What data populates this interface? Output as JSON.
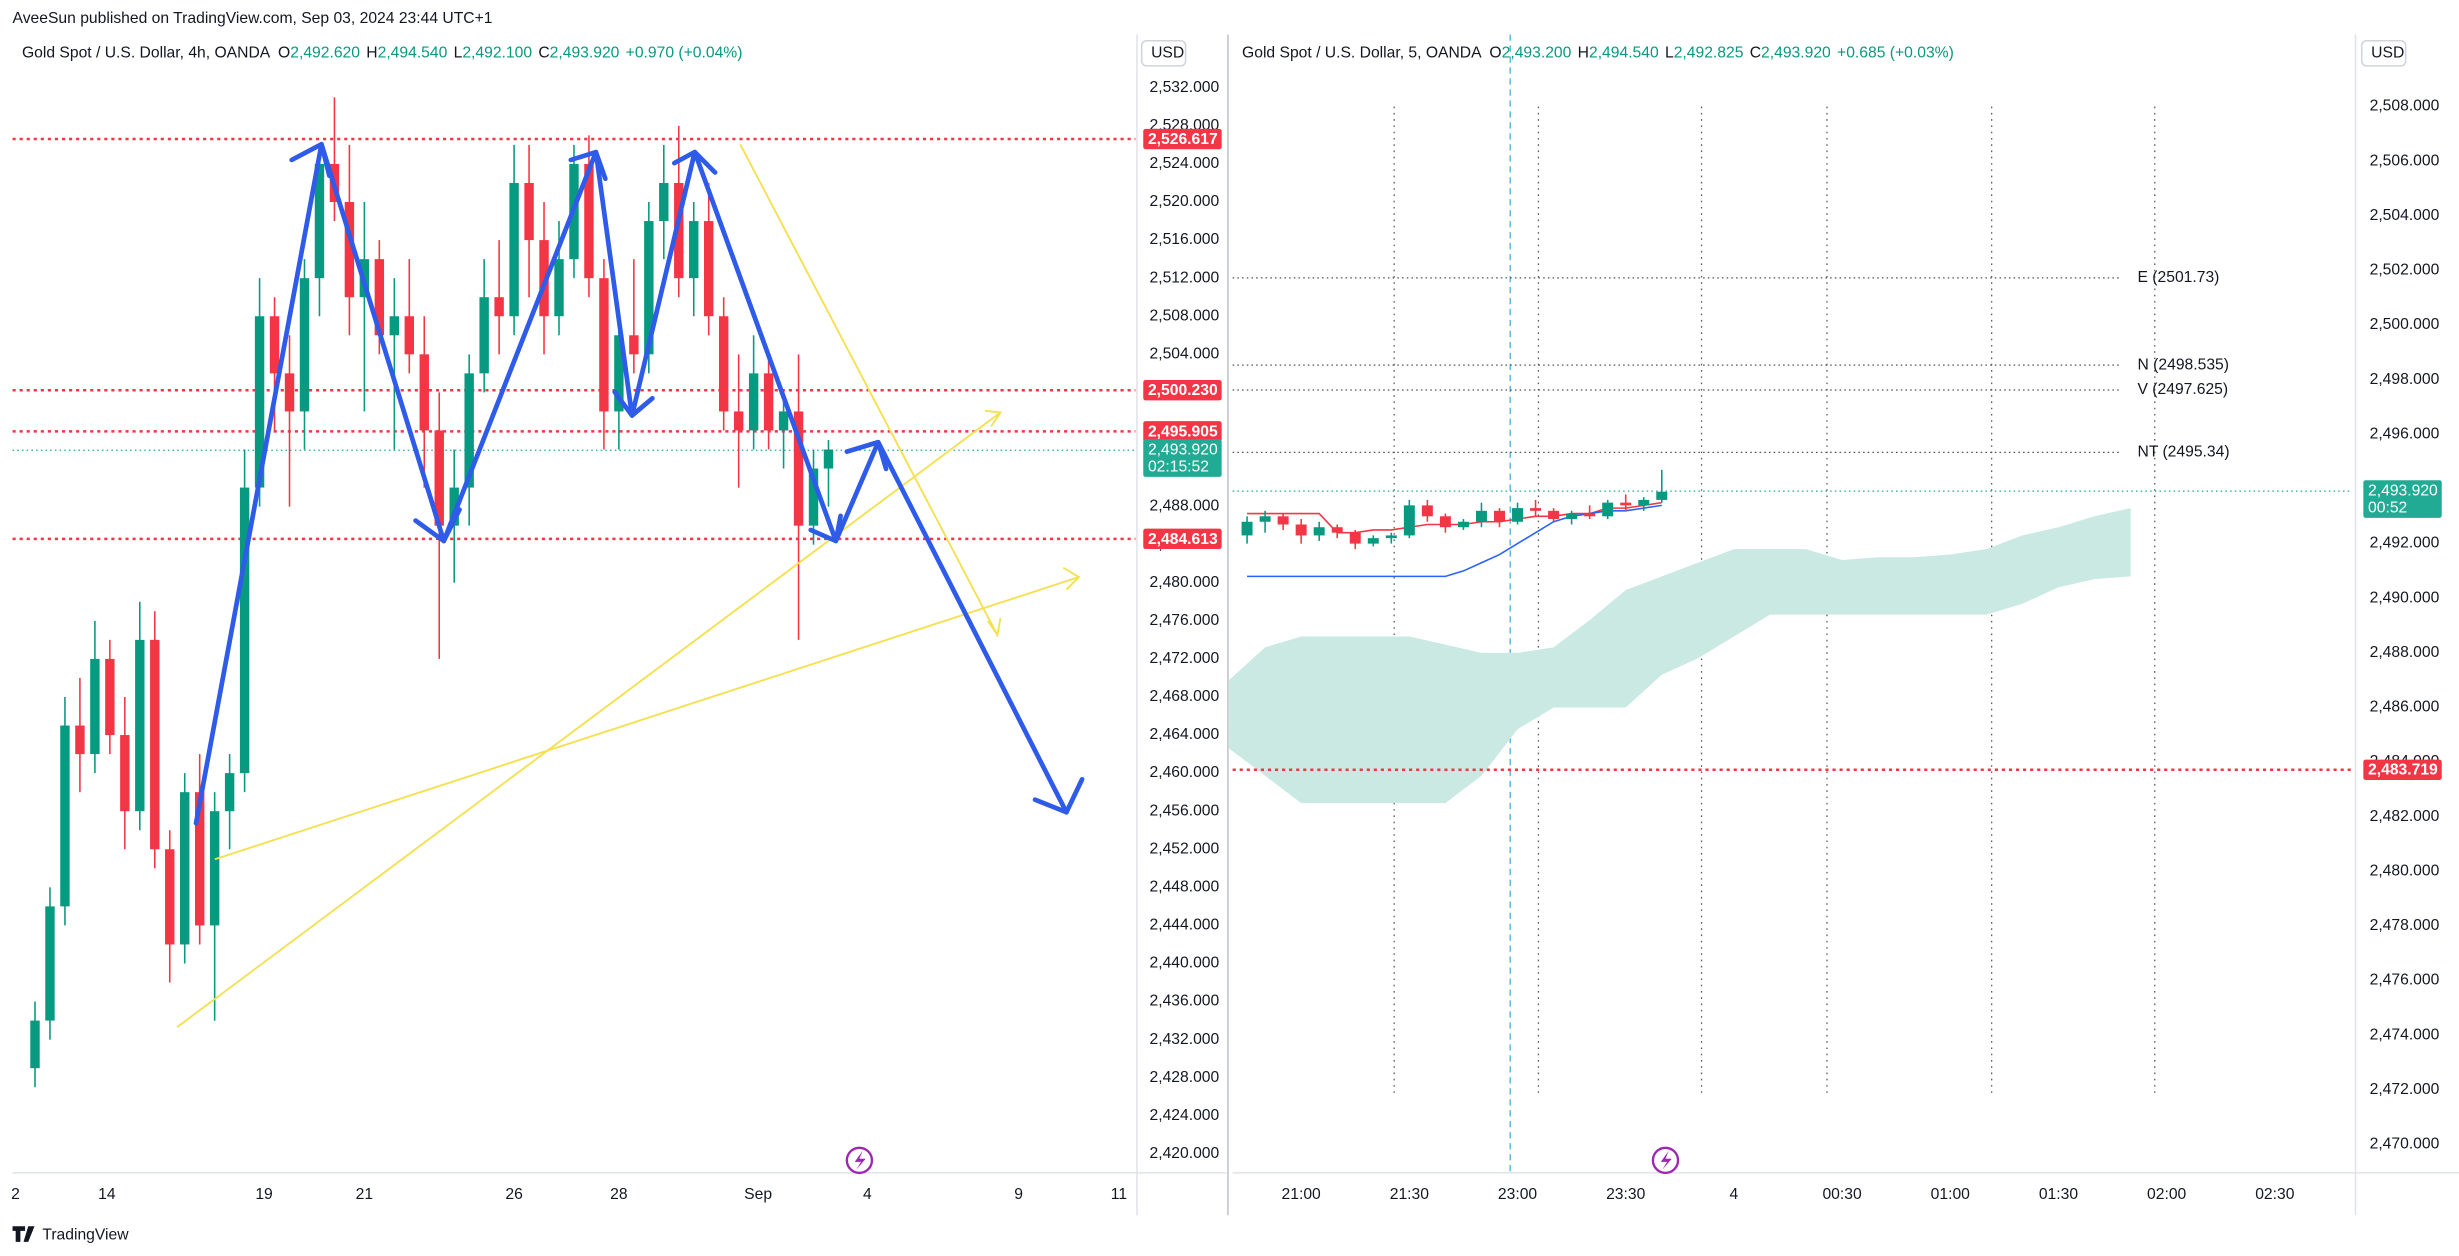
{
  "published": "AveeSun published on TradingView.com, Sep 03, 2024 23:44 UTC+1",
  "brand": "TradingView",
  "chart_data": [
    {
      "type": "candlestick",
      "header": {
        "symbol": "Gold Spot / U.S. Dollar, 4h, OANDA",
        "ohlc": [
          {
            "key": "O",
            "value": "2,492.620"
          },
          {
            "key": "H",
            "value": "2,494.540"
          },
          {
            "key": "L",
            "value": "2,492.100"
          },
          {
            "key": "C",
            "value": "2,493.920"
          }
        ],
        "change": "+0.970 (+0.04%)"
      },
      "currency": "USD",
      "up_color": "#089981",
      "down_color": "#f23645",
      "xlim": [
        -1.5,
        73.5
      ],
      "ylim": [
        2418,
        2537.6
      ],
      "xticks": [
        {
          "value": -1.3,
          "label": "2"
        },
        {
          "value": 4.8,
          "label": "14"
        },
        {
          "value": 15.3,
          "label": "19"
        },
        {
          "value": 22,
          "label": "21"
        },
        {
          "value": 32,
          "label": "26"
        },
        {
          "value": 39,
          "label": "28"
        },
        {
          "value": 48.3,
          "label": "Sep"
        },
        {
          "value": 55.6,
          "label": "4"
        },
        {
          "value": 65.7,
          "label": "9"
        },
        {
          "value": 72.4,
          "label": "11"
        }
      ],
      "yticks": [
        {
          "value": 2420,
          "label": "2,420.000"
        },
        {
          "value": 2424,
          "label": "2,424.000"
        },
        {
          "value": 2428,
          "label": "2,428.000"
        },
        {
          "value": 2432,
          "label": "2,432.000"
        },
        {
          "value": 2436,
          "label": "2,436.000"
        },
        {
          "value": 2440,
          "label": "2,440.000"
        },
        {
          "value": 2444,
          "label": "2,444.000"
        },
        {
          "value": 2448,
          "label": "2,448.000"
        },
        {
          "value": 2452,
          "label": "2,452.000"
        },
        {
          "value": 2456,
          "label": "2,456.000"
        },
        {
          "value": 2460,
          "label": "2,460.000"
        },
        {
          "value": 2464,
          "label": "2,464.000"
        },
        {
          "value": 2468,
          "label": "2,468.000"
        },
        {
          "value": 2472,
          "label": "2,472.000"
        },
        {
          "value": 2476,
          "label": "2,476.000"
        },
        {
          "value": 2480,
          "label": "2,480.000"
        },
        {
          "value": 2484,
          "label": "2,484.000"
        },
        {
          "value": 2488,
          "label": "2,488.000"
        },
        {
          "value": 2492,
          "label": "2,492.000"
        },
        {
          "value": 2496,
          "label": "2,496.000"
        },
        {
          "value": 2500,
          "label": "2,500.000"
        },
        {
          "value": 2504,
          "label": "2,504.000"
        },
        {
          "value": 2508,
          "label": "2,508.000"
        },
        {
          "value": 2512,
          "label": "2,512.000"
        },
        {
          "value": 2516,
          "label": "2,516.000"
        },
        {
          "value": 2520,
          "label": "2,520.000"
        },
        {
          "value": 2524,
          "label": "2,524.000"
        },
        {
          "value": 2528,
          "label": "2,528.000"
        },
        {
          "value": 2532,
          "label": "2,532.000"
        }
      ],
      "levels": [
        {
          "value": 2526.617,
          "label": "2,526.617",
          "color": "#f23645"
        },
        {
          "value": 2500.23,
          "label": "2,500.230",
          "color": "#f23645"
        },
        {
          "value": 2495.905,
          "label": "2,495.905",
          "color": "#f23645"
        },
        {
          "value": 2484.613,
          "label": "2,484.613",
          "color": "#f23645"
        }
      ],
      "current": {
        "value": 2493.92,
        "label": "2,493.920",
        "countdown": "02:15:52",
        "color": "#22ab94"
      },
      "x": [
        0,
        1,
        2,
        3,
        4,
        5,
        6,
        7,
        8,
        9,
        10,
        11,
        12,
        13,
        14,
        15,
        16,
        17,
        18,
        19,
        20,
        21,
        22,
        23,
        24,
        25,
        26,
        27,
        28,
        29,
        30,
        31,
        32,
        33,
        34,
        35,
        36,
        37,
        38,
        39,
        40,
        41,
        42,
        43,
        44,
        45,
        46,
        47,
        48,
        49,
        50,
        51,
        52,
        53
      ],
      "ohlc": [
        [
          2429,
          2436,
          2427,
          2434
        ],
        [
          2434,
          2448,
          2432,
          2446
        ],
        [
          2446,
          2468,
          2444,
          2465
        ],
        [
          2465,
          2470,
          2458,
          2462
        ],
        [
          2462,
          2476,
          2460,
          2472
        ],
        [
          2472,
          2474,
          2462,
          2464
        ],
        [
          2464,
          2468,
          2452,
          2456
        ],
        [
          2456,
          2478,
          2454,
          2474
        ],
        [
          2474,
          2477,
          2450,
          2452
        ],
        [
          2452,
          2454,
          2438,
          2442
        ],
        [
          2442,
          2460,
          2440,
          2458
        ],
        [
          2458,
          2462,
          2442,
          2444
        ],
        [
          2444,
          2458,
          2434,
          2456
        ],
        [
          2456,
          2462,
          2452,
          2460
        ],
        [
          2460,
          2494,
          2458,
          2490
        ],
        [
          2490,
          2512,
          2488,
          2508
        ],
        [
          2508,
          2510,
          2496,
          2502
        ],
        [
          2502,
          2506,
          2488,
          2498
        ],
        [
          2498,
          2514,
          2494,
          2512
        ],
        [
          2512,
          2526,
          2508,
          2524
        ],
        [
          2524,
          2531,
          2518,
          2520
        ],
        [
          2520,
          2526,
          2506,
          2510
        ],
        [
          2510,
          2520,
          2498,
          2514
        ],
        [
          2514,
          2516,
          2504,
          2506
        ],
        [
          2506,
          2512,
          2494,
          2508
        ],
        [
          2508,
          2514,
          2502,
          2504
        ],
        [
          2504,
          2508,
          2490,
          2496
        ],
        [
          2496,
          2500,
          2472,
          2486
        ],
        [
          2486,
          2494,
          2480,
          2490
        ],
        [
          2490,
          2504,
          2486,
          2502
        ],
        [
          2502,
          2514,
          2500,
          2510
        ],
        [
          2510,
          2516,
          2504,
          2508
        ],
        [
          2508,
          2526,
          2506,
          2522
        ],
        [
          2522,
          2526,
          2510,
          2516
        ],
        [
          2516,
          2520,
          2504,
          2508
        ],
        [
          2508,
          2518,
          2506,
          2514
        ],
        [
          2514,
          2526,
          2512,
          2524
        ],
        [
          2524,
          2527,
          2510,
          2512
        ],
        [
          2512,
          2514,
          2494,
          2498
        ],
        [
          2498,
          2508,
          2494,
          2506
        ],
        [
          2506,
          2514,
          2502,
          2504
        ],
        [
          2504,
          2520,
          2502,
          2518
        ],
        [
          2518,
          2526,
          2514,
          2522
        ],
        [
          2522,
          2528,
          2510,
          2512
        ],
        [
          2512,
          2520,
          2508,
          2518
        ],
        [
          2518,
          2522,
          2506,
          2508
        ],
        [
          2508,
          2510,
          2496,
          2498
        ],
        [
          2498,
          2504,
          2490,
          2496
        ],
        [
          2496,
          2506,
          2494,
          2502
        ],
        [
          2502,
          2504,
          2494,
          2496
        ],
        [
          2496,
          2500,
          2492,
          2498
        ],
        [
          2498,
          2504,
          2474,
          2486
        ],
        [
          2486,
          2494,
          2484,
          2492
        ],
        [
          2492,
          2495,
          2488,
          2494
        ]
      ]
    },
    {
      "type": "candlestick",
      "header": {
        "symbol": "Gold Spot / U.S. Dollar, 5, OANDA",
        "ohlc": [
          {
            "key": "O",
            "value": "2,493.200"
          },
          {
            "key": "H",
            "value": "2,494.540"
          },
          {
            "key": "L",
            "value": "2,492.825"
          },
          {
            "key": "C",
            "value": "2,493.920"
          }
        ],
        "change": "+0.685 (+0.03%)"
      },
      "currency": "USD",
      "up_color": "#089981",
      "down_color": "#f23645",
      "xlim": [
        -3.8,
        58.3
      ],
      "ylim": [
        2468.96,
        2510.64
      ],
      "xticks": [
        {
          "value": 0,
          "label": "21:00"
        },
        {
          "value": 6,
          "label": "21:30"
        },
        {
          "value": 12,
          "label": "23:00"
        },
        {
          "value": 18,
          "label": "23:30"
        },
        {
          "value": 24,
          "label": "4"
        },
        {
          "value": 30,
          "label": "00:30"
        },
        {
          "value": 36,
          "label": "01:00"
        },
        {
          "value": 42,
          "label": "01:30"
        },
        {
          "value": 48,
          "label": "02:00"
        },
        {
          "value": 54,
          "label": "02:30"
        }
      ],
      "yticks": [
        {
          "value": 2470,
          "label": "2,470.000"
        },
        {
          "value": 2472,
          "label": "2,472.000"
        },
        {
          "value": 2474,
          "label": "2,474.000"
        },
        {
          "value": 2476,
          "label": "2,476.000"
        },
        {
          "value": 2478,
          "label": "2,478.000"
        },
        {
          "value": 2480,
          "label": "2,480.000"
        },
        {
          "value": 2482,
          "label": "2,482.000"
        },
        {
          "value": 2484,
          "label": "2,484.000"
        },
        {
          "value": 2486,
          "label": "2,486.000"
        },
        {
          "value": 2488,
          "label": "2,488.000"
        },
        {
          "value": 2490,
          "label": "2,490.000"
        },
        {
          "value": 2492,
          "label": "2,492.000"
        },
        {
          "value": 2494,
          "label": "2,494.000"
        },
        {
          "value": 2496,
          "label": "2,496.000"
        },
        {
          "value": 2498,
          "label": "2,498.000"
        },
        {
          "value": 2500,
          "label": "2,500.000"
        },
        {
          "value": 2502,
          "label": "2,502.000"
        },
        {
          "value": 2504,
          "label": "2,504.000"
        },
        {
          "value": 2506,
          "label": "2,506.000"
        },
        {
          "value": 2508,
          "label": "2,508.000"
        }
      ],
      "levels": [
        {
          "value": 2483.719,
          "label": "2,483.719",
          "color": "#f23645"
        }
      ],
      "annotations": [
        {
          "value": 2501.73,
          "label": "E (2501.73)"
        },
        {
          "value": 2498.535,
          "label": "N (2498.535)"
        },
        {
          "value": 2497.625,
          "label": "V (2497.625)"
        },
        {
          "value": 2495.34,
          "label": "NT (2495.34)"
        }
      ],
      "current": {
        "value": 2493.92,
        "label": "2,493.920",
        "countdown": "00:52",
        "color": "#22ab94"
      },
      "cloud": {
        "color": "#c9e9e2",
        "x": [
          -4,
          -2,
          0,
          2,
          4,
          6,
          8,
          10,
          12,
          14,
          16,
          18,
          20,
          22,
          24,
          26,
          28,
          30,
          32,
          34,
          36,
          38,
          40,
          42,
          44,
          46
        ],
        "upper": [
          2487.0,
          2488.2,
          2488.6,
          2488.6,
          2488.6,
          2488.6,
          2488.3,
          2488.0,
          2488.0,
          2488.2,
          2489.2,
          2490.3,
          2490.8,
          2491.3,
          2491.8,
          2491.8,
          2491.8,
          2491.4,
          2491.5,
          2491.5,
          2491.6,
          2491.8,
          2492.3,
          2492.6,
          2493.0,
          2493.3
        ],
        "lower": [
          2484.5,
          2483.5,
          2482.5,
          2482.5,
          2482.5,
          2482.5,
          2482.5,
          2483.5,
          2485.2,
          2486.0,
          2486.0,
          2486.0,
          2487.2,
          2487.8,
          2488.6,
          2489.4,
          2489.4,
          2489.4,
          2489.4,
          2489.4,
          2489.4,
          2489.4,
          2489.8,
          2490.4,
          2490.7,
          2490.8
        ]
      },
      "x": [
        -3,
        -2,
        -1,
        0,
        1,
        2,
        3,
        4,
        5,
        6,
        7,
        8,
        9,
        10,
        11,
        12,
        13,
        14,
        15,
        16,
        17,
        18,
        19,
        20
      ],
      "lines": [
        {
          "color": "#f23645",
          "values": [
            2493.1,
            2493.1,
            2493.1,
            2493.1,
            2493.1,
            2492.4,
            2492.4,
            2492.5,
            2492.5,
            2492.6,
            2492.7,
            2492.7,
            2492.7,
            2492.8,
            2492.8,
            2492.9,
            2493.0,
            2493.0,
            2493.1,
            2493.1,
            2493.3,
            2493.3,
            2493.4,
            2493.5
          ]
        },
        {
          "color": "#2962ff",
          "values": [
            2490.8,
            2490.8,
            2490.8,
            2490.8,
            2490.8,
            2490.8,
            2490.8,
            2490.8,
            2490.8,
            2490.8,
            2490.8,
            2490.8,
            2491.0,
            2491.3,
            2491.6,
            2492.0,
            2492.4,
            2492.8,
            2493.0,
            2493.1,
            2493.2,
            2493.2,
            2493.3,
            2493.4
          ]
        }
      ],
      "ohlc": [
        [
          2492.3,
          2493.0,
          2492.0,
          2492.8
        ],
        [
          2492.8,
          2493.2,
          2492.4,
          2493.0
        ],
        [
          2493.0,
          2493.1,
          2492.5,
          2492.7
        ],
        [
          2492.7,
          2492.9,
          2492.0,
          2492.3
        ],
        [
          2492.3,
          2492.8,
          2492.1,
          2492.6
        ],
        [
          2492.6,
          2492.7,
          2492.2,
          2492.4
        ],
        [
          2492.4,
          2492.5,
          2491.8,
          2492.0
        ],
        [
          2492.0,
          2492.3,
          2491.9,
          2492.2
        ],
        [
          2492.2,
          2492.4,
          2492.0,
          2492.3
        ],
        [
          2492.3,
          2493.6,
          2492.2,
          2493.4
        ],
        [
          2493.4,
          2493.6,
          2492.8,
          2493.0
        ],
        [
          2493.0,
          2493.1,
          2492.4,
          2492.6
        ],
        [
          2492.6,
          2492.9,
          2492.5,
          2492.8
        ],
        [
          2492.8,
          2493.5,
          2492.6,
          2493.2
        ],
        [
          2493.2,
          2493.3,
          2492.6,
          2492.8
        ],
        [
          2492.8,
          2493.5,
          2492.7,
          2493.3
        ],
        [
          2493.3,
          2493.6,
          2493.0,
          2493.2
        ],
        [
          2493.2,
          2493.3,
          2492.8,
          2492.9
        ],
        [
          2492.9,
          2493.2,
          2492.7,
          2493.1
        ],
        [
          2493.1,
          2493.4,
          2492.9,
          2493.0
        ],
        [
          2493.0,
          2493.6,
          2492.9,
          2493.5
        ],
        [
          2493.5,
          2493.8,
          2493.2,
          2493.4
        ],
        [
          2493.4,
          2493.7,
          2493.2,
          2493.6
        ],
        [
          2493.6,
          2494.7,
          2493.5,
          2493.9
        ]
      ]
    }
  ]
}
